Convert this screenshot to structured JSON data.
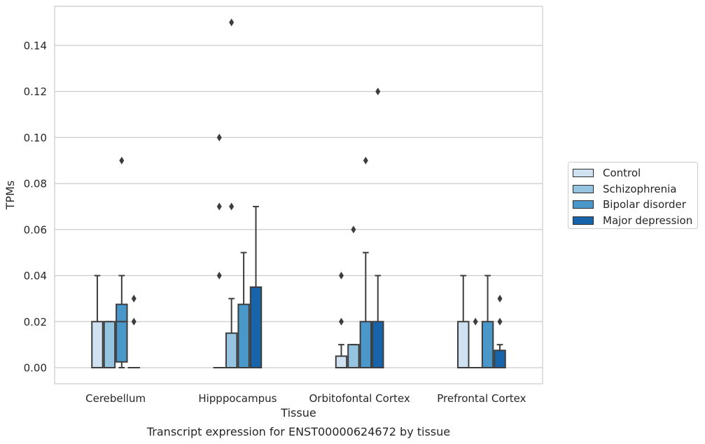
{
  "chart_data": {
    "type": "box",
    "title": "Transcript expression for ENST00000624672 by tissue",
    "xlabel": "Tissue",
    "ylabel": "TPMs",
    "ylim": [
      -0.007,
      0.157
    ],
    "yticks": [
      "0.00",
      "0.02",
      "0.04",
      "0.06",
      "0.08",
      "0.10",
      "0.12",
      "0.14"
    ],
    "categories": [
      "Cerebellum",
      "Hipppocampus",
      "Orbitofontal Cortex",
      "Prefrontal Cortex"
    ],
    "grid": "horizontal",
    "legend_position": "right",
    "series": [
      {
        "name": "Control",
        "color": "#d0e1f2",
        "boxes": [
          {
            "q1": 0.0,
            "q3": 0.02,
            "median": 0.0,
            "whisker_low": 0.0,
            "whisker_high": 0.04,
            "outliers": []
          },
          {
            "q1": 0.0,
            "q3": 0.0,
            "median": 0.0,
            "whisker_low": 0.0,
            "whisker_high": 0.0,
            "outliers": [
              0.04,
              0.07,
              0.1
            ]
          },
          {
            "q1": 0.0,
            "q3": 0.005,
            "median": 0.0,
            "whisker_low": 0.0,
            "whisker_high": 0.01,
            "outliers": [
              0.02,
              0.04
            ]
          },
          {
            "q1": 0.0,
            "q3": 0.02,
            "median": 0.0,
            "whisker_low": 0.0,
            "whisker_high": 0.04,
            "outliers": []
          }
        ]
      },
      {
        "name": "Schizophrenia",
        "color": "#94c4df",
        "boxes": [
          {
            "q1": 0.0,
            "q3": 0.02,
            "median": 0.0,
            "whisker_low": 0.0,
            "whisker_high": 0.02,
            "outliers": []
          },
          {
            "q1": 0.0,
            "q3": 0.015,
            "median": 0.0,
            "whisker_low": 0.0,
            "whisker_high": 0.03,
            "outliers": [
              0.07,
              0.15
            ]
          },
          {
            "q1": 0.0,
            "q3": 0.01,
            "median": 0.0,
            "whisker_low": 0.0,
            "whisker_high": 0.01,
            "outliers": [
              0.06
            ]
          },
          {
            "q1": 0.0,
            "q3": 0.0,
            "median": 0.0,
            "whisker_low": 0.0,
            "whisker_high": 0.0,
            "outliers": [
              0.02
            ]
          }
        ]
      },
      {
        "name": "Bipolar disorder",
        "color": "#4a98c9",
        "boxes": [
          {
            "q1": 0.0025,
            "q3": 0.0275,
            "median": 0.02,
            "whisker_low": 0.0,
            "whisker_high": 0.04,
            "outliers": [
              0.09
            ]
          },
          {
            "q1": 0.0,
            "q3": 0.0275,
            "median": 0.0,
            "whisker_low": 0.0,
            "whisker_high": 0.05,
            "outliers": []
          },
          {
            "q1": 0.0,
            "q3": 0.02,
            "median": 0.0,
            "whisker_low": 0.0,
            "whisker_high": 0.05,
            "outliers": [
              0.09
            ]
          },
          {
            "q1": 0.0,
            "q3": 0.02,
            "median": 0.0,
            "whisker_low": 0.0,
            "whisker_high": 0.04,
            "outliers": []
          }
        ]
      },
      {
        "name": "Major depression",
        "color": "#1764ab",
        "boxes": [
          {
            "q1": 0.0,
            "q3": 0.0,
            "median": 0.0,
            "whisker_low": 0.0,
            "whisker_high": 0.0,
            "outliers": [
              0.02,
              0.03
            ]
          },
          {
            "q1": 0.0,
            "q3": 0.035,
            "median": 0.0,
            "whisker_low": 0.0,
            "whisker_high": 0.07,
            "outliers": []
          },
          {
            "q1": 0.0,
            "q3": 0.02,
            "median": 0.0,
            "whisker_low": 0.0,
            "whisker_high": 0.04,
            "outliers": [
              0.12
            ]
          },
          {
            "q1": 0.0,
            "q3": 0.0075,
            "median": 0.0,
            "whisker_low": 0.0,
            "whisker_high": 0.01,
            "outliers": [
              0.02,
              0.03
            ]
          }
        ]
      }
    ]
  }
}
